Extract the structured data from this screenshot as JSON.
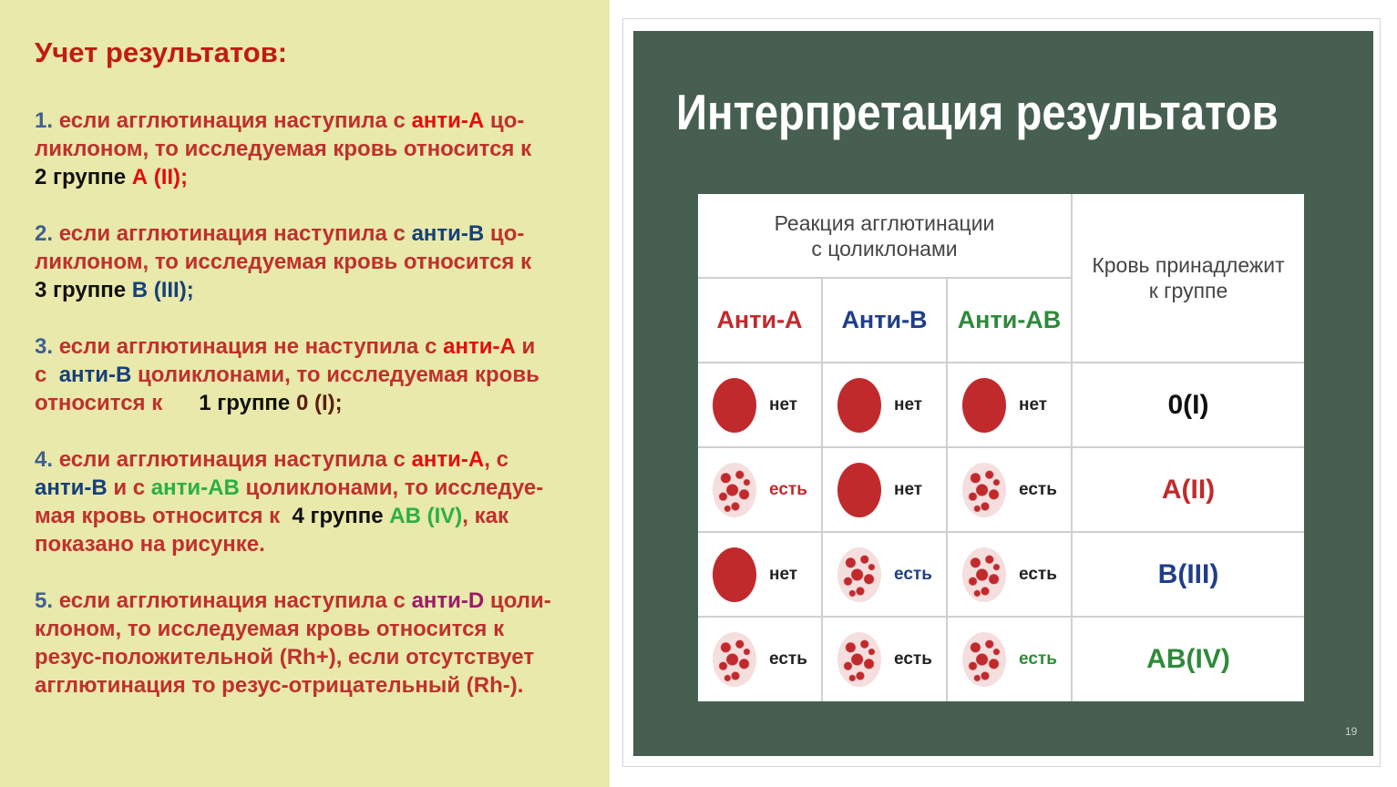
{
  "left": {
    "title": "Учет результатов:",
    "lines": [
      [
        {
          "t": "1. ",
          "c": "c-num"
        },
        {
          "t": "если агглютинация наступила с ",
          "c": "c-body"
        },
        {
          "t": "анти-А",
          "c": "c-red"
        },
        {
          "t": " цо-",
          "c": "c-body"
        }
      ],
      [
        {
          "t": "ликлоном, то исследуемая кровь относится к",
          "c": "c-body"
        }
      ],
      [
        {
          "t": "2 группе ",
          "c": "c-black"
        },
        {
          "t": "А (II);",
          "c": "c-red"
        }
      ],
      null,
      [
        {
          "t": "2. ",
          "c": "c-num"
        },
        {
          "t": "если агглютинация наступила с ",
          "c": "c-body"
        },
        {
          "t": "анти-В",
          "c": "c-blue"
        },
        {
          "t": " цо-",
          "c": "c-body"
        }
      ],
      [
        {
          "t": "ликлоном, то исследуемая кровь относится к",
          "c": "c-body"
        }
      ],
      [
        {
          "t": "3 группе ",
          "c": "c-black"
        },
        {
          "t": "В (III);",
          "c": "c-blue"
        }
      ],
      null,
      [
        {
          "t": "3. ",
          "c": "c-num"
        },
        {
          "t": "если агглютинация не наступила с ",
          "c": "c-body"
        },
        {
          "t": "анти-А",
          "c": "c-red"
        },
        {
          "t": " и",
          "c": "c-body"
        }
      ],
      [
        {
          "t": "с  ",
          "c": "c-body"
        },
        {
          "t": "анти-В",
          "c": "c-blue"
        },
        {
          "t": " цоликлонами, то исследуемая кровь",
          "c": "c-body"
        }
      ],
      [
        {
          "t": "относится к      ",
          "c": "c-body"
        },
        {
          "t": "1 группе ",
          "c": "c-black"
        },
        {
          "t": "0 (I);",
          "c": "c-dark"
        }
      ],
      null,
      [
        {
          "t": "4. ",
          "c": "c-num"
        },
        {
          "t": "если агглютинация наступила с ",
          "c": "c-body"
        },
        {
          "t": "анти-А",
          "c": "c-red"
        },
        {
          "t": ", с",
          "c": "c-body"
        }
      ],
      [
        {
          "t": "анти-В",
          "c": "c-blue"
        },
        {
          "t": " и с ",
          "c": "c-body"
        },
        {
          "t": "анти-АВ",
          "c": "c-green"
        },
        {
          "t": " цоликлонами, то исследуе-",
          "c": "c-body"
        }
      ],
      [
        {
          "t": "мая кровь относится к  ",
          "c": "c-body"
        },
        {
          "t": "4 группе ",
          "c": "c-black"
        },
        {
          "t": "АВ (IV)",
          "c": "c-green"
        },
        {
          "t": ", как",
          "c": "c-body"
        }
      ],
      [
        {
          "t": "показано на рисунке.",
          "c": "c-body"
        }
      ],
      null,
      [
        {
          "t": "5. ",
          "c": "c-num"
        },
        {
          "t": "если агглютинация наступила с ",
          "c": "c-body"
        },
        {
          "t": "анти-D",
          "c": "c-magenta"
        },
        {
          "t": " цоли-",
          "c": "c-body"
        }
      ],
      [
        {
          "t": "клоном, то исследуемая кровь относится к",
          "c": "c-body"
        }
      ],
      [
        {
          "t": "резус-положительной (Rh+), если отсутствует",
          "c": "c-body"
        }
      ],
      [
        {
          "t": "агглютинация то резус-отрицательный (Rh-).",
          "c": "c-body"
        }
      ]
    ]
  },
  "slide": {
    "title": "Интерпретация результатов",
    "page_number": "19",
    "table": {
      "header_group": "Реакция агглютинации\nс цоликлонами",
      "header_result": "Кровь принадлежит\nк группе",
      "columns": [
        {
          "label": "Анти-А",
          "color": "#c12a2d"
        },
        {
          "label": "Анти-В",
          "color": "#1f3e8a"
        },
        {
          "label": "Анти-АВ",
          "color": "#2e8a3a"
        }
      ],
      "rows": [
        {
          "cells": [
            {
              "agg": false,
              "label": "нет",
              "lc": ""
            },
            {
              "agg": false,
              "label": "нет",
              "lc": ""
            },
            {
              "agg": false,
              "label": "нет",
              "lc": ""
            }
          ],
          "result": "0(I)",
          "result_color": "#111111"
        },
        {
          "cells": [
            {
              "agg": true,
              "label": "есть",
              "lc": "red"
            },
            {
              "agg": false,
              "label": "нет",
              "lc": ""
            },
            {
              "agg": true,
              "label": "есть",
              "lc": ""
            }
          ],
          "result": "A(II)",
          "result_color": "#c12a2d"
        },
        {
          "cells": [
            {
              "agg": false,
              "label": "нет",
              "lc": ""
            },
            {
              "agg": true,
              "label": "есть",
              "lc": "blue"
            },
            {
              "agg": true,
              "label": "есть",
              "lc": ""
            }
          ],
          "result": "B(III)",
          "result_color": "#1f3e8a"
        },
        {
          "cells": [
            {
              "agg": true,
              "label": "есть",
              "lc": ""
            },
            {
              "agg": true,
              "label": "есть",
              "lc": ""
            },
            {
              "agg": true,
              "label": "есть",
              "lc": "green"
            }
          ],
          "result": "AB(IV)",
          "result_color": "#2e8a3a"
        }
      ]
    }
  }
}
